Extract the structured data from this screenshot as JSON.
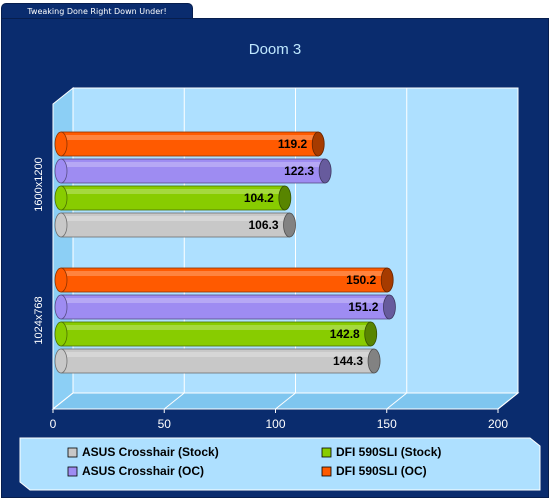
{
  "header": {
    "tab_label": "Tweaking Done Right Down Under!"
  },
  "chart_data": {
    "type": "bar",
    "orientation": "horizontal",
    "title": "Doom 3",
    "categories": [
      "1600x1200",
      "1024x768"
    ],
    "series": [
      {
        "name": "ASUS Crosshair (Stock)",
        "color": "#c8c8c8",
        "values": [
          106.3,
          144.3
        ]
      },
      {
        "name": "DFI 590SLI (Stock)",
        "color": "#88cc00",
        "values": [
          104.2,
          142.8
        ]
      },
      {
        "name": "ASUS Crosshair (OC)",
        "color": "#9e8cf2",
        "values": [
          122.3,
          151.2
        ]
      },
      {
        "name": "DFI 590SLI (OC)",
        "color": "#ff5a00",
        "values": [
          119.2,
          150.2
        ]
      }
    ],
    "xlim": [
      0,
      200
    ],
    "xticks": [
      0,
      50,
      100,
      150,
      200
    ],
    "grid": true,
    "legend_position": "bottom"
  }
}
